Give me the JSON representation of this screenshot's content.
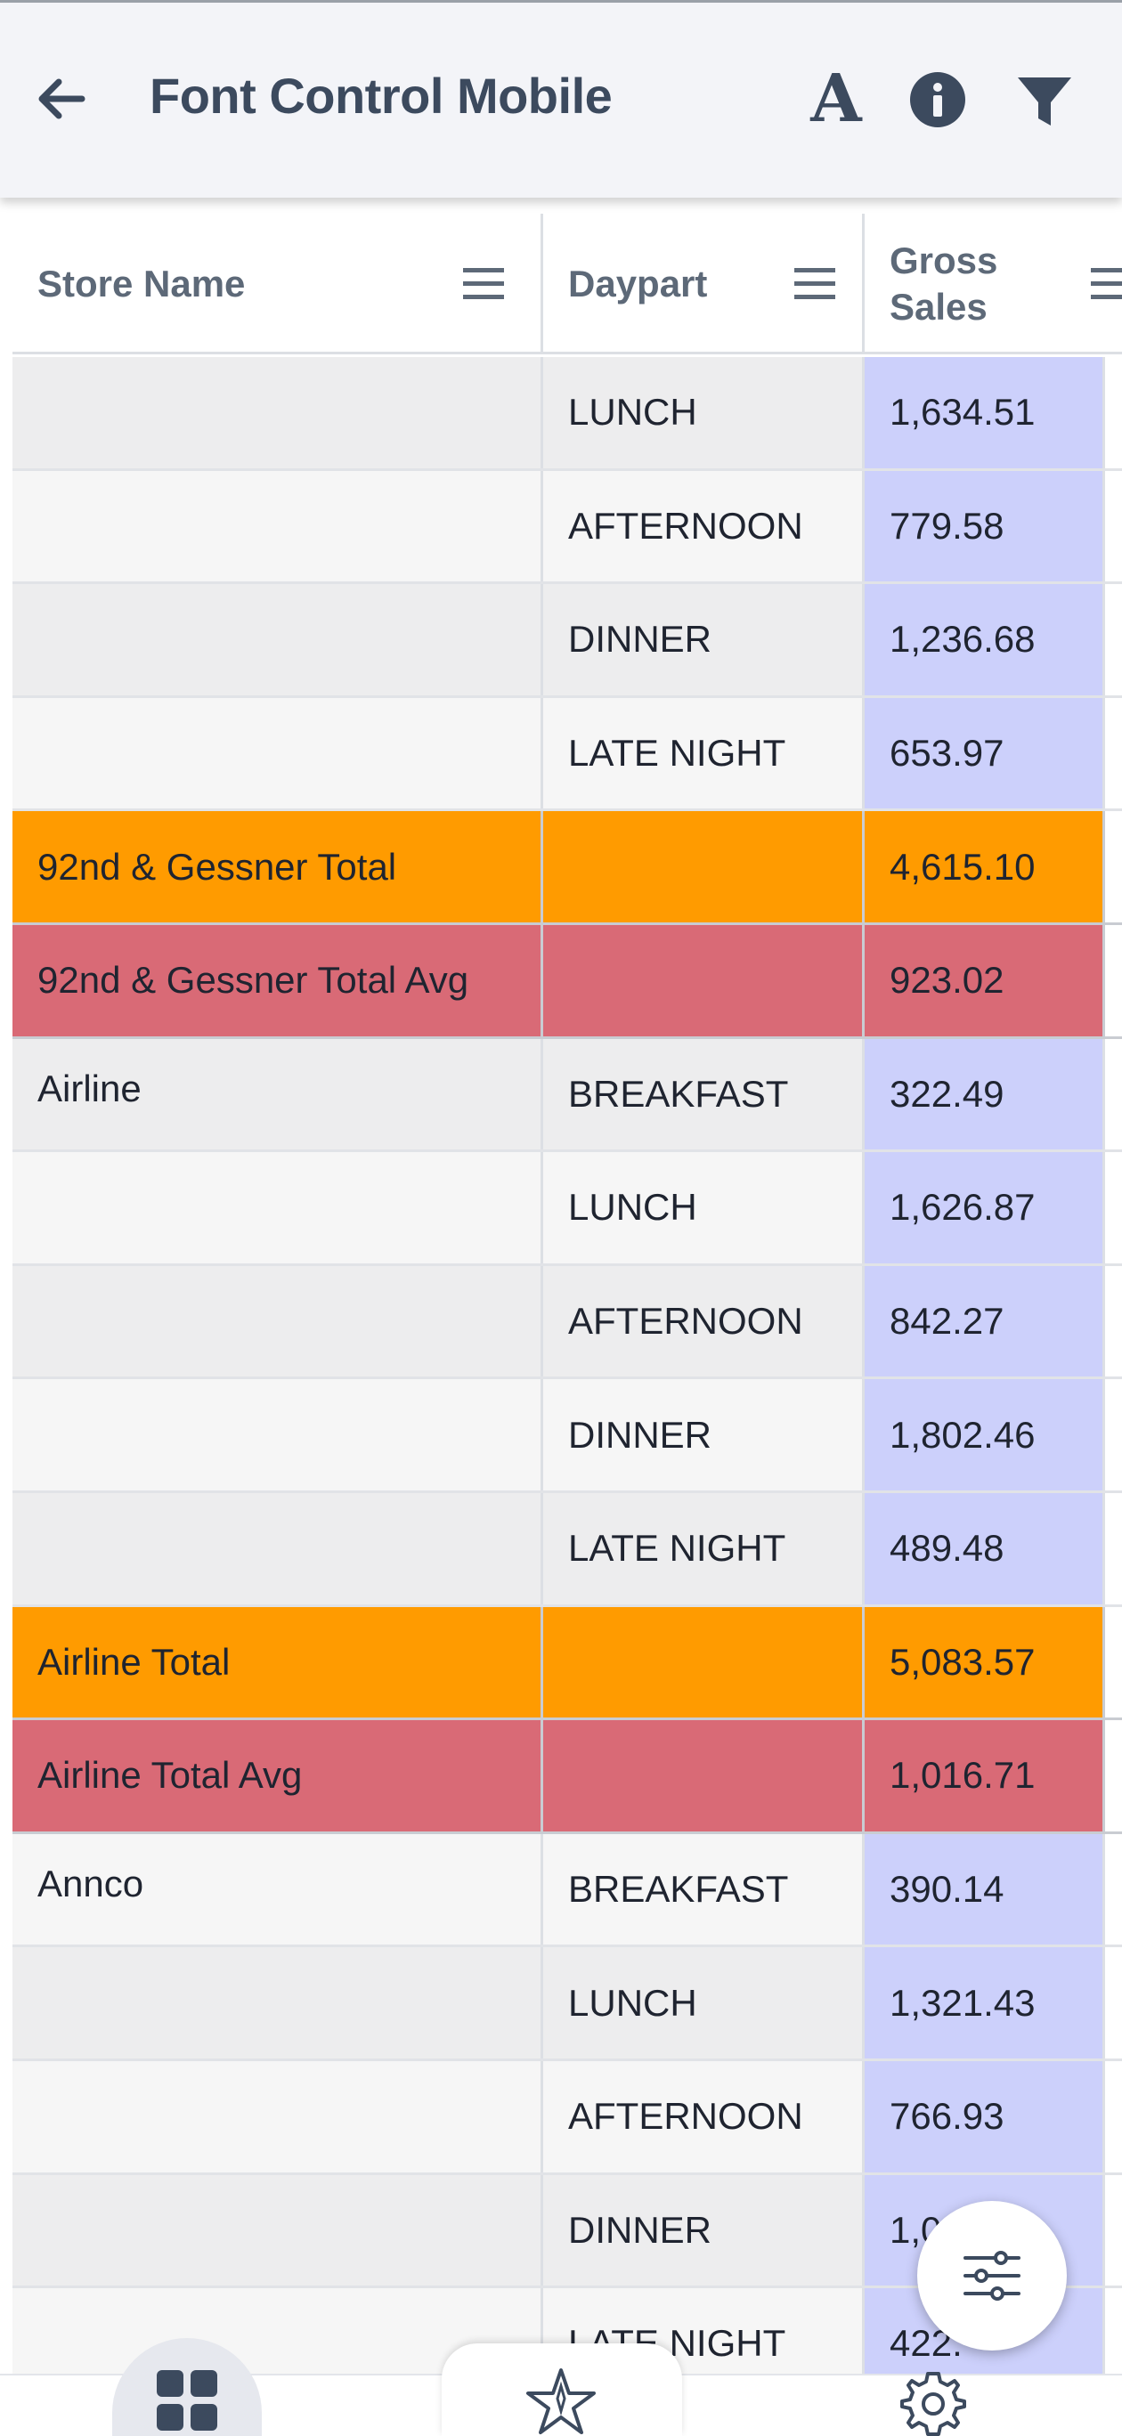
{
  "appbar": {
    "title": "Font Control Mobile",
    "font_icon_glyph": "A",
    "icons": [
      "back-arrow-icon",
      "font-size-icon",
      "info-icon",
      "filter-icon"
    ]
  },
  "grid": {
    "columns": [
      "Store Name",
      "Daypart",
      "Gross\nSales"
    ],
    "rows": [
      {
        "store": "",
        "daypart": "LUNCH",
        "sales": "1,634.51",
        "kind": "data"
      },
      {
        "store": "",
        "daypart": "AFTERNOON",
        "sales": "779.58",
        "kind": "data"
      },
      {
        "store": "",
        "daypart": "DINNER",
        "sales": "1,236.68",
        "kind": "data"
      },
      {
        "store": "",
        "daypart": "LATE NIGHT",
        "sales": "653.97",
        "kind": "data"
      },
      {
        "store": "92nd & Gessner Total",
        "daypart": "",
        "sales": "4,615.10",
        "kind": "total"
      },
      {
        "store": "92nd & Gessner Total Avg",
        "daypart": "",
        "sales": "923.02",
        "kind": "avg"
      },
      {
        "store": "Airline",
        "daypart": "BREAKFAST",
        "sales": "322.49",
        "kind": "data"
      },
      {
        "store": "",
        "daypart": "LUNCH",
        "sales": "1,626.87",
        "kind": "data"
      },
      {
        "store": "",
        "daypart": "AFTERNOON",
        "sales": "842.27",
        "kind": "data"
      },
      {
        "store": "",
        "daypart": "DINNER",
        "sales": "1,802.46",
        "kind": "data"
      },
      {
        "store": "",
        "daypart": "LATE NIGHT",
        "sales": "489.48",
        "kind": "data"
      },
      {
        "store": "Airline Total",
        "daypart": "",
        "sales": "5,083.57",
        "kind": "total"
      },
      {
        "store": "Airline Total Avg",
        "daypart": "",
        "sales": "1,016.71",
        "kind": "avg"
      },
      {
        "store": "Annco",
        "daypart": "BREAKFAST",
        "sales": "390.14",
        "kind": "data"
      },
      {
        "store": "",
        "daypart": "LUNCH",
        "sales": "1,321.43",
        "kind": "data"
      },
      {
        "store": "",
        "daypart": "AFTERNOON",
        "sales": "766.93",
        "kind": "data"
      },
      {
        "store": "",
        "daypart": "DINNER",
        "sales": "1,0",
        "kind": "data"
      },
      {
        "store": "",
        "daypart": "LATE NIGHT",
        "sales": "422.",
        "kind": "data"
      }
    ]
  },
  "colors": {
    "total_row": "#ff9b00",
    "avg_row": "#d96a76",
    "sales_column": "#ccd0fb",
    "title_text": "#3c4a5e"
  },
  "fab": {
    "icon": "sliders-icon"
  },
  "bottom_nav": {
    "items": [
      "grid-icon",
      "star-icon",
      "gear-icon"
    ]
  }
}
